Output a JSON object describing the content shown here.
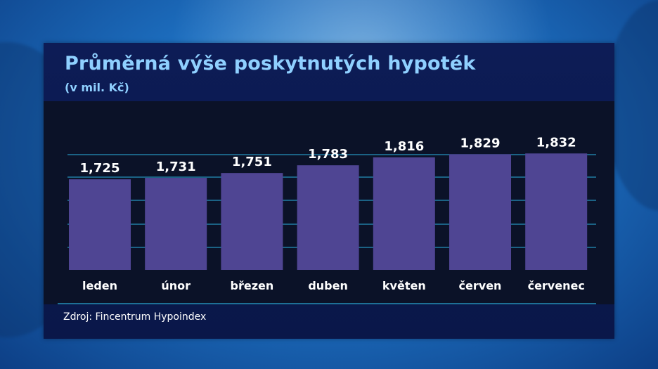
{
  "chart_data": {
    "type": "bar",
    "title": "Průměrná výše poskytnutých hypoték",
    "subtitle": "(v mil. Kč)",
    "categories": [
      "leden",
      "únor",
      "březen",
      "duben",
      "květen",
      "červen",
      "červenec"
    ],
    "values": [
      1.725,
      1.731,
      1.751,
      1.783,
      1.816,
      1.829,
      1.832
    ],
    "value_labels": [
      "1,725",
      "1,731",
      "1,751",
      "1,783",
      "1,816",
      "1,829",
      "1,832"
    ],
    "xlabel": "",
    "ylabel": "",
    "grid": true,
    "legend": "none",
    "bar_color": "#4f4593",
    "grid_color": "#2aa9d8"
  },
  "footer": {
    "source": "Zdroj: Fincentrum Hypoindex"
  }
}
